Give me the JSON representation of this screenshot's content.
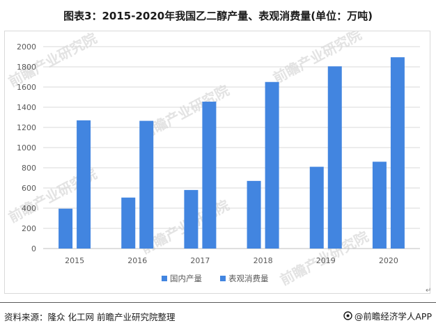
{
  "title": "图表3：2015-2020年我国乙二醇产量、表观消费量(单位：万吨)",
  "source_text": "资料来源：隆众 化工网 前瞻产业研究院整理",
  "brand_text": "@前瞻经济学人APP",
  "watermark_text": "前瞻产业研究院",
  "return_mark": "↵",
  "colors": {
    "bar": "#4285e0",
    "grid": "#d9d9d9",
    "axis_text": "#595959",
    "watermark": "#e3e3e3"
  },
  "chart_data": {
    "type": "bar",
    "categories": [
      "2015",
      "2016",
      "2017",
      "2018",
      "2019",
      "2020"
    ],
    "series": [
      {
        "name": "国内产量",
        "values": [
          395,
          505,
          580,
          670,
          810,
          860
        ]
      },
      {
        "name": "表观消费量",
        "values": [
          1270,
          1265,
          1455,
          1650,
          1805,
          1895
        ]
      }
    ],
    "yticks": [
      "0",
      "200",
      "400",
      "600",
      "800",
      "1000",
      "1200",
      "1400",
      "1600",
      "1800",
      "2000"
    ],
    "ylim": [
      0,
      2000
    ],
    "grid": true,
    "legend_position": "bottom"
  }
}
